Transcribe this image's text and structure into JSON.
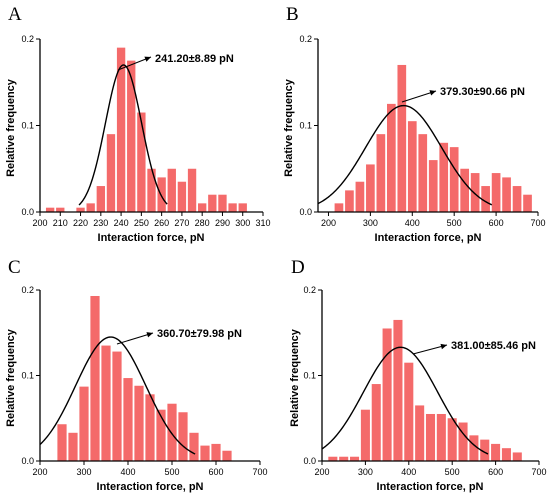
{
  "colors": {
    "bar": "#F46A6A",
    "curve": "#000000",
    "axis": "#000000"
  },
  "chart_data": [
    {
      "type": "bar",
      "panel": "A",
      "xlabel": "Interaction force, pN",
      "ylabel": "Relative frequency",
      "annotation": "241.20±8.89 pN",
      "xlim": [
        200,
        310
      ],
      "ylim": [
        0,
        0.2
      ],
      "xticks": [
        200,
        210,
        220,
        230,
        240,
        250,
        260,
        270,
        280,
        290,
        300,
        310
      ],
      "xtick_labels": [
        "200",
        "210",
        "220",
        "230",
        "240",
        "250",
        "260",
        "270",
        "280",
        "290",
        "300",
        "310"
      ],
      "yticks": [
        0,
        0.1,
        0.2
      ],
      "ytick_labels": [
        "0.0",
        "0.1",
        "0.2"
      ],
      "bin_width": 5,
      "bins": [
        {
          "x": 205,
          "y": 0.005
        },
        {
          "x": 210,
          "y": 0.005
        },
        {
          "x": 220,
          "y": 0.005
        },
        {
          "x": 225,
          "y": 0.01
        },
        {
          "x": 230,
          "y": 0.03
        },
        {
          "x": 235,
          "y": 0.09
        },
        {
          "x": 240,
          "y": 0.19
        },
        {
          "x": 245,
          "y": 0.175
        },
        {
          "x": 250,
          "y": 0.115
        },
        {
          "x": 255,
          "y": 0.05
        },
        {
          "x": 260,
          "y": 0.04
        },
        {
          "x": 265,
          "y": 0.05
        },
        {
          "x": 270,
          "y": 0.035
        },
        {
          "x": 275,
          "y": 0.05
        },
        {
          "x": 280,
          "y": 0.01
        },
        {
          "x": 285,
          "y": 0.02
        },
        {
          "x": 290,
          "y": 0.02
        },
        {
          "x": 295,
          "y": 0.01
        },
        {
          "x": 300,
          "y": 0.01
        }
      ],
      "fit": {
        "mean": 241.2,
        "sd": 8.89,
        "peak": 0.17
      }
    },
    {
      "type": "bar",
      "panel": "B",
      "xlabel": "Interaction force, pN",
      "ylabel": "Relative frequency",
      "annotation": "379.30±90.66 pN",
      "xlim": [
        175,
        700
      ],
      "ylim": [
        0,
        0.2
      ],
      "xticks": [
        200,
        300,
        400,
        500,
        600,
        700
      ],
      "xtick_labels": [
        "200",
        "300",
        "400",
        "500",
        "600",
        "700"
      ],
      "yticks": [
        0,
        0.1,
        0.2
      ],
      "ytick_labels": [
        "0.0",
        "0.1",
        "0.2"
      ],
      "bin_width": 25,
      "bins": [
        {
          "x": 225,
          "y": 0.01
        },
        {
          "x": 250,
          "y": 0.025
        },
        {
          "x": 275,
          "y": 0.035
        },
        {
          "x": 300,
          "y": 0.055
        },
        {
          "x": 325,
          "y": 0.09
        },
        {
          "x": 350,
          "y": 0.125
        },
        {
          "x": 375,
          "y": 0.17
        },
        {
          "x": 400,
          "y": 0.105
        },
        {
          "x": 425,
          "y": 0.09
        },
        {
          "x": 450,
          "y": 0.06
        },
        {
          "x": 475,
          "y": 0.08
        },
        {
          "x": 500,
          "y": 0.075
        },
        {
          "x": 525,
          "y": 0.05
        },
        {
          "x": 550,
          "y": 0.045
        },
        {
          "x": 575,
          "y": 0.03
        },
        {
          "x": 600,
          "y": 0.045
        },
        {
          "x": 625,
          "y": 0.04
        },
        {
          "x": 650,
          "y": 0.03
        },
        {
          "x": 675,
          "y": 0.02
        }
      ],
      "fit": {
        "mean": 379.3,
        "sd": 90.66,
        "peak": 0.123
      }
    },
    {
      "type": "bar",
      "panel": "C",
      "xlabel": "Interaction force, pN",
      "ylabel": "Relative frequency",
      "annotation": "360.70±79.98 pN",
      "xlim": [
        200,
        700
      ],
      "ylim": [
        0,
        0.2
      ],
      "xticks": [
        200,
        300,
        400,
        500,
        600,
        700
      ],
      "xtick_labels": [
        "200",
        "300",
        "400",
        "500",
        "600",
        "700"
      ],
      "yticks": [
        0,
        0.1,
        0.2
      ],
      "ytick_labels": [
        "0.0",
        "0.1",
        "0.2"
      ],
      "bin_width": 25,
      "bins": [
        {
          "x": 250,
          "y": 0.043
        },
        {
          "x": 275,
          "y": 0.033
        },
        {
          "x": 300,
          "y": 0.087
        },
        {
          "x": 325,
          "y": 0.193
        },
        {
          "x": 350,
          "y": 0.135
        },
        {
          "x": 375,
          "y": 0.128
        },
        {
          "x": 400,
          "y": 0.097
        },
        {
          "x": 425,
          "y": 0.088
        },
        {
          "x": 450,
          "y": 0.078
        },
        {
          "x": 475,
          "y": 0.06
        },
        {
          "x": 500,
          "y": 0.067
        },
        {
          "x": 525,
          "y": 0.057
        },
        {
          "x": 550,
          "y": 0.033
        },
        {
          "x": 575,
          "y": 0.018
        },
        {
          "x": 600,
          "y": 0.02
        },
        {
          "x": 625,
          "y": 0.012
        }
      ],
      "fit": {
        "mean": 360.7,
        "sd": 79.98,
        "peak": 0.145
      }
    },
    {
      "type": "bar",
      "panel": "D",
      "xlabel": "Interaction force, pN",
      "ylabel": "Relative frequency",
      "annotation": "381.00±85.46 pN",
      "xlim": [
        200,
        700
      ],
      "ylim": [
        0,
        0.2
      ],
      "xticks": [
        200,
        300,
        400,
        500,
        600,
        700
      ],
      "xtick_labels": [
        "200",
        "300",
        "400",
        "500",
        "600",
        "700"
      ],
      "yticks": [
        0,
        0.1,
        0.2
      ],
      "ytick_labels": [
        "0.0",
        "0.1",
        "0.2"
      ],
      "bin_width": 25,
      "bins": [
        {
          "x": 225,
          "y": 0.005
        },
        {
          "x": 250,
          "y": 0.005
        },
        {
          "x": 275,
          "y": 0.005
        },
        {
          "x": 300,
          "y": 0.06
        },
        {
          "x": 325,
          "y": 0.09
        },
        {
          "x": 350,
          "y": 0.155
        },
        {
          "x": 375,
          "y": 0.165
        },
        {
          "x": 400,
          "y": 0.115
        },
        {
          "x": 425,
          "y": 0.065
        },
        {
          "x": 450,
          "y": 0.055
        },
        {
          "x": 475,
          "y": 0.055
        },
        {
          "x": 500,
          "y": 0.05
        },
        {
          "x": 525,
          "y": 0.045
        },
        {
          "x": 550,
          "y": 0.03
        },
        {
          "x": 575,
          "y": 0.025
        },
        {
          "x": 600,
          "y": 0.02
        },
        {
          "x": 625,
          "y": 0.015
        },
        {
          "x": 650,
          "y": 0.01
        }
      ],
      "fit": {
        "mean": 381.0,
        "sd": 85.46,
        "peak": 0.133
      }
    }
  ]
}
